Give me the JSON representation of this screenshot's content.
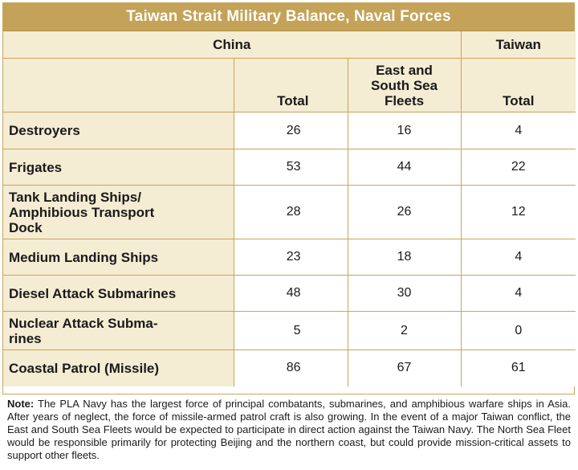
{
  "title": "Taiwan Strait Military Balance, Naval Forces",
  "groups": {
    "china": "China",
    "taiwan": "Taiwan"
  },
  "columns": {
    "china_total": "Total",
    "fleets": [
      "East and",
      "South Sea",
      "Fleets"
    ],
    "taiwan_total": "Total"
  },
  "rows": [
    {
      "label": [
        "Destroyers"
      ],
      "china_total": "26",
      "fleets": "16",
      "taiwan_total": "4"
    },
    {
      "label": [
        "Frigates"
      ],
      "china_total": "53",
      "fleets": "44",
      "taiwan_total": "22"
    },
    {
      "label": [
        "Tank Landing Ships/",
        "Amphibious Transport",
        "Dock"
      ],
      "china_total": "28",
      "fleets": "26",
      "taiwan_total": "12"
    },
    {
      "label": [
        "Medium Landing Ships"
      ],
      "china_total": "23",
      "fleets": "18",
      "taiwan_total": "4"
    },
    {
      "label": [
        "Diesel Attack Submarines"
      ],
      "china_total": "48",
      "fleets": "30",
      "taiwan_total": "4"
    },
    {
      "label": [
        "Nuclear Attack Subma-",
        "rines"
      ],
      "china_total": "5",
      "fleets": "2",
      "taiwan_total": "0"
    },
    {
      "label": [
        "Coastal Patrol (Missile)"
      ],
      "china_total": "86",
      "fleets": "67",
      "taiwan_total": "61"
    }
  ],
  "note": {
    "label": "Note:",
    "text": "The PLA Navy has the largest force of principal combatants, submarines, and amphibious warfare ships in Asia. After years of neglect, the force of missile-armed patrol craft is also growing. In the event of a major Taiwan conflict, the East and South Sea Fleets would be expected to participate in direct action against the Taiwan Navy. The North Sea Fleet would be responsible primarily for protecting Beijing and the northern coast, but could provide mission-critical assets to support other fleets."
  },
  "colors": {
    "gold": "#c4a257",
    "header_bg": "#f4ecd3",
    "border": "#c8a55a"
  }
}
